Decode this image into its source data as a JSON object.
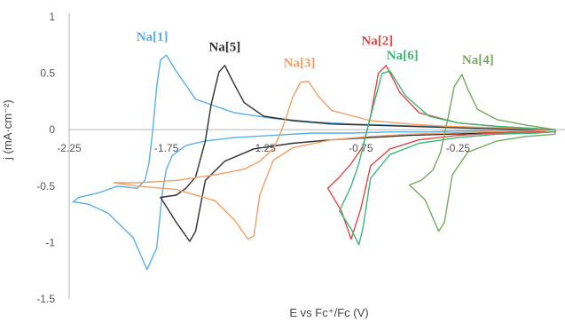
{
  "chart_data": {
    "type": "line",
    "title": "",
    "xlabel": "E vs Fc⁺/Fc (V)",
    "ylabel": "j (mA·cm⁻²)",
    "xlim": [
      -2.25,
      0.3
    ],
    "ylim": [
      -1.5,
      1
    ],
    "x_ticks": [
      -2.25,
      -1.75,
      -1.25,
      -0.75,
      -0.25
    ],
    "x_tick_labels": [
      "-2.25",
      "-1.75",
      "-1.25",
      "-0.75",
      "-0.25"
    ],
    "y_ticks": [
      1,
      0.5,
      0,
      -0.5,
      -1,
      -1.5
    ],
    "y_tick_labels": [
      "1",
      "0.5",
      "0",
      "-0.5",
      "-1",
      "-1.5"
    ],
    "grid": false,
    "legend": "none",
    "series": [
      {
        "name": "Na[1]",
        "color": "#5aaee6",
        "x": [
          -2.15,
          -2.05,
          -1.92,
          -1.85,
          -1.8,
          -1.77,
          -1.75,
          -1.72,
          -1.65,
          -1.55,
          -1.4,
          -1.2,
          -1.0,
          -0.8,
          -0.6,
          -0.4,
          -0.2,
          0.0,
          0.2,
          0.2,
          0.0,
          -0.2,
          -0.4,
          -0.6,
          -0.8,
          -1.0,
          -1.2,
          -1.4,
          -1.6,
          -1.7,
          -1.75,
          -1.78,
          -1.8,
          -1.82,
          -1.84,
          -1.86,
          -1.9,
          -2.0,
          -2.1,
          -2.2,
          -2.23,
          -2.15
        ],
        "y": [
          -0.66,
          -0.74,
          -0.96,
          -1.24,
          -1.05,
          -0.55,
          -0.35,
          -0.23,
          -0.14,
          -0.1,
          -0.07,
          -0.05,
          -0.03,
          -0.03,
          -0.02,
          -0.02,
          -0.01,
          -0.01,
          0.0,
          0.0,
          0.01,
          0.02,
          0.03,
          0.04,
          0.05,
          0.07,
          0.1,
          0.15,
          0.27,
          0.52,
          0.66,
          0.62,
          0.38,
          0.0,
          -0.3,
          -0.45,
          -0.52,
          -0.5,
          -0.56,
          -0.6,
          -0.64,
          -0.66
        ]
      },
      {
        "name": "Na[5]",
        "color": "#303030",
        "x": [
          -1.78,
          -1.7,
          -1.63,
          -1.6,
          -1.55,
          -1.45,
          -1.3,
          -1.1,
          -0.9,
          -0.7,
          -0.5,
          -0.3,
          -0.1,
          0.1,
          0.25,
          0.25,
          0.1,
          -0.1,
          -0.3,
          -0.5,
          -0.7,
          -0.9,
          -1.1,
          -1.25,
          -1.35,
          -1.4,
          -1.45,
          -1.48,
          -1.52,
          -1.55,
          -1.6,
          -1.65,
          -1.7,
          -1.78
        ],
        "y": [
          -0.6,
          -0.82,
          -0.99,
          -0.9,
          -0.45,
          -0.28,
          -0.17,
          -0.12,
          -0.09,
          -0.07,
          -0.05,
          -0.04,
          -0.03,
          -0.02,
          -0.02,
          0.0,
          0.0,
          0.01,
          0.02,
          0.03,
          0.04,
          0.05,
          0.08,
          0.12,
          0.24,
          0.4,
          0.57,
          0.51,
          0.22,
          -0.1,
          -0.42,
          -0.52,
          -0.58,
          -0.6
        ]
      },
      {
        "name": "Na[3]",
        "color": "#f0a068",
        "x": [
          -2.02,
          -1.9,
          -1.7,
          -1.5,
          -1.4,
          -1.33,
          -1.3,
          -1.27,
          -1.2,
          -1.1,
          -0.9,
          -0.7,
          -0.5,
          -0.3,
          -0.1,
          0.1,
          0.2,
          0.2,
          0.1,
          -0.1,
          -0.3,
          -0.5,
          -0.7,
          -0.9,
          -0.97,
          -1.02,
          -1.06,
          -1.1,
          -1.13,
          -1.16,
          -1.2,
          -1.27,
          -1.35,
          -1.5,
          -1.7,
          -1.9,
          -2.02
        ],
        "y": [
          -0.47,
          -0.5,
          -0.53,
          -0.63,
          -0.8,
          -0.97,
          -0.94,
          -0.58,
          -0.27,
          -0.16,
          -0.09,
          -0.06,
          -0.04,
          -0.03,
          -0.02,
          -0.01,
          -0.01,
          0.0,
          0.01,
          0.02,
          0.03,
          0.05,
          0.08,
          0.17,
          0.3,
          0.43,
          0.42,
          0.29,
          0.13,
          -0.02,
          -0.17,
          -0.28,
          -0.35,
          -0.4,
          -0.45,
          -0.47,
          -0.47
        ]
      },
      {
        "name": "Na[2]",
        "color": "#e04848",
        "x": [
          -0.92,
          -0.85,
          -0.8,
          -0.75,
          -0.7,
          -0.6,
          -0.45,
          -0.25,
          -0.05,
          0.15,
          0.25,
          0.25,
          0.15,
          -0.05,
          -0.25,
          -0.45,
          -0.55,
          -0.62,
          -0.66,
          -0.7,
          -0.74,
          -0.8,
          -0.86,
          -0.92
        ],
        "y": [
          -0.52,
          -0.72,
          -0.97,
          -0.7,
          -0.32,
          -0.17,
          -0.09,
          -0.05,
          -0.03,
          -0.02,
          -0.02,
          0.0,
          0.01,
          0.03,
          0.06,
          0.15,
          0.33,
          0.57,
          0.5,
          0.12,
          -0.15,
          -0.3,
          -0.42,
          -0.52
        ]
      },
      {
        "name": "Na[6]",
        "color": "#3cb878",
        "x": [
          -0.86,
          -0.8,
          -0.76,
          -0.74,
          -0.7,
          -0.6,
          -0.45,
          -0.25,
          -0.05,
          0.15,
          0.25,
          0.25,
          0.15,
          -0.05,
          -0.25,
          -0.4,
          -0.52,
          -0.6,
          -0.64,
          -0.68,
          -0.72,
          -0.76,
          -0.8,
          -0.86
        ],
        "y": [
          -0.72,
          -0.88,
          -1.02,
          -0.88,
          -0.43,
          -0.22,
          -0.12,
          -0.07,
          -0.04,
          -0.03,
          -0.02,
          0.0,
          0.01,
          0.03,
          0.06,
          0.12,
          0.3,
          0.52,
          0.5,
          0.25,
          -0.02,
          -0.3,
          -0.5,
          -0.72
        ]
      },
      {
        "name": "Na[4]",
        "color": "#78a860",
        "x": [
          -0.5,
          -0.42,
          -0.35,
          -0.32,
          -0.28,
          -0.2,
          -0.05,
          0.1,
          0.25,
          0.25,
          0.1,
          -0.05,
          -0.15,
          -0.2,
          -0.23,
          -0.27,
          -0.3,
          -0.34,
          -0.38,
          -0.44,
          -0.5
        ],
        "y": [
          -0.49,
          -0.62,
          -0.9,
          -0.82,
          -0.4,
          -0.2,
          -0.1,
          -0.06,
          -0.04,
          0.0,
          0.04,
          0.09,
          0.18,
          0.36,
          0.49,
          0.38,
          0.12,
          -0.2,
          -0.36,
          -0.45,
          -0.49
        ]
      }
    ]
  }
}
